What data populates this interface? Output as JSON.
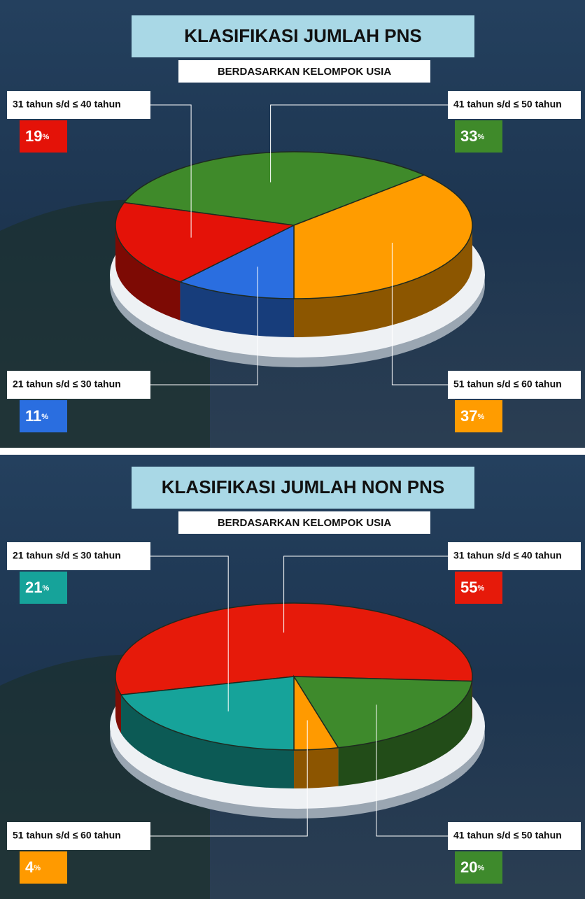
{
  "chart_data": [
    {
      "type": "pie",
      "title": "KLASIFIKASI JUMLAH PNS",
      "subtitle": "BERDASARKAN KELOMPOK USIA",
      "categories": [
        "41 tahun s/d ≤ 50 tahun",
        "51 tahun s/d ≤ 60 tahun",
        "21 tahun s/d ≤ 30 tahun",
        "31 tahun s/d ≤ 40 tahun"
      ],
      "values": [
        33,
        37,
        11,
        19
      ],
      "value_labels": [
        "33%",
        "37%",
        "11%",
        "19%"
      ],
      "colors": [
        "#3f8a2a",
        "#ff9c00",
        "#2a6ee0",
        "#e41208"
      ]
    },
    {
      "type": "pie",
      "title": "KLASIFIKASI JUMLAH NON PNS",
      "subtitle": "BERDASARKAN KELOMPOK USIA",
      "categories": [
        "31 tahun s/d ≤ 40 tahun",
        "41 tahun s/d ≤ 50 tahun",
        "51 tahun s/d ≤ 60 tahun",
        "21 tahun s/d ≤ 30 tahun"
      ],
      "values": [
        55,
        20,
        4,
        21
      ],
      "value_labels": [
        "55%",
        "20%",
        "4%",
        "21%"
      ],
      "colors": [
        "#e61a0a",
        "#3e8a2c",
        "#ff9a00",
        "#16a39a"
      ]
    }
  ]
}
